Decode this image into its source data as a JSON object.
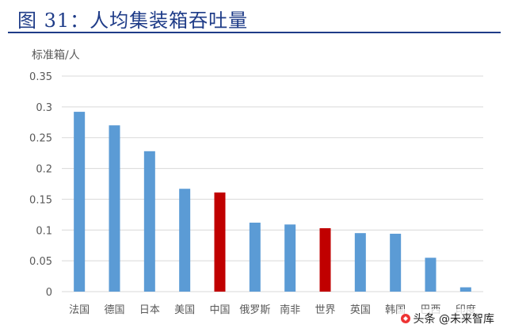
{
  "title": "图 31：人均集装箱吞吐量",
  "watermark": "头条 @未来智库",
  "colors": {
    "title": "#1f3c88",
    "bar_default": "#5b9bd5",
    "bar_highlight": "#c00000",
    "grid": "#d9d9d9",
    "tick_text": "#595959"
  },
  "chart_data": {
    "type": "bar",
    "ylabel": "标准箱/人",
    "ylim": [
      0,
      0.35
    ],
    "yticks": [
      "0",
      "0.05",
      "0.1",
      "0.15",
      "0.2",
      "0.25",
      "0.3",
      "0.35"
    ],
    "ytick_values": [
      0,
      0.05,
      0.1,
      0.15,
      0.2,
      0.25,
      0.3,
      0.35
    ],
    "grid": true,
    "categories": [
      "法国",
      "德国",
      "日本",
      "美国",
      "中国",
      "俄罗斯",
      "南非",
      "世界",
      "英国",
      "韩国",
      "巴西",
      "印度"
    ],
    "values": [
      0.292,
      0.27,
      0.228,
      0.167,
      0.161,
      0.112,
      0.109,
      0.103,
      0.095,
      0.094,
      0.055,
      0.007
    ],
    "highlighted": [
      "中国",
      "世界"
    ]
  }
}
